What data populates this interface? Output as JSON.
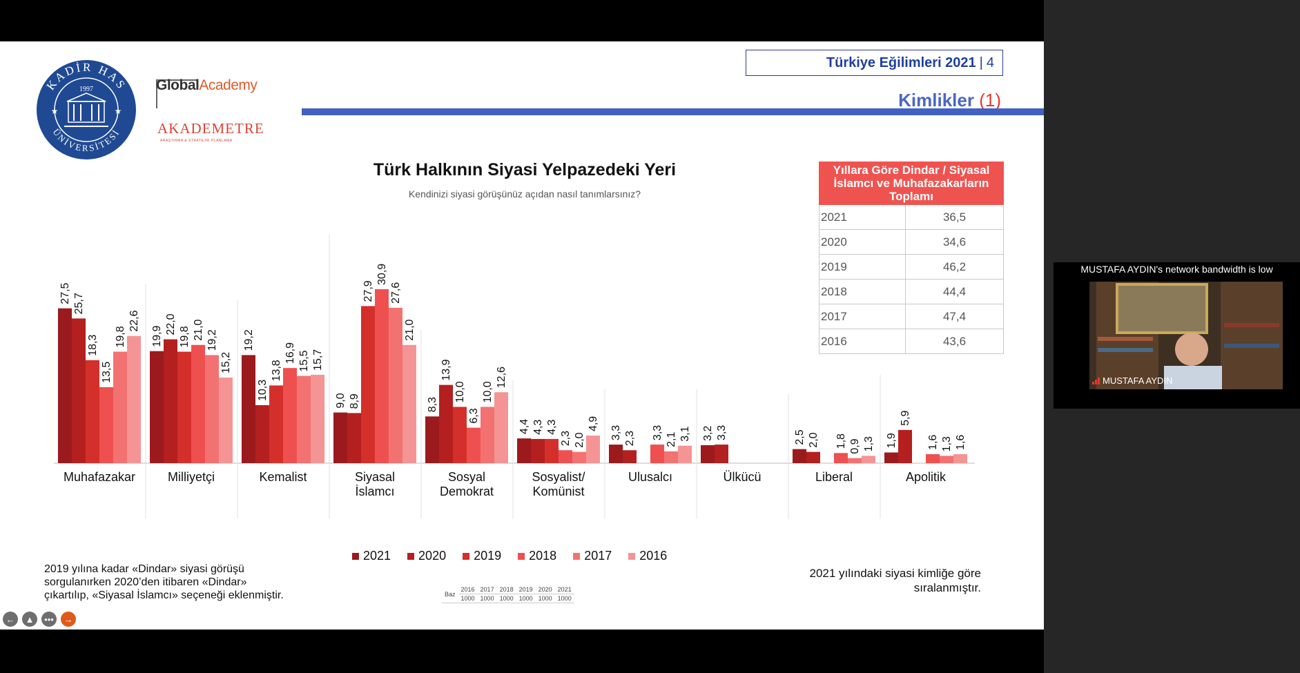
{
  "slide": {
    "header": {
      "title": "Türkiye Eğilimleri 2021",
      "separator": "|",
      "page": "4"
    },
    "section": {
      "title": "Kimlikler",
      "number": "(1)"
    },
    "logos": {
      "khas_top": "KADİR HAS",
      "khas_year": "1997",
      "khas_bottom": "ÜNİVERSİTESİ",
      "global_a": "Global",
      "global_b": "Academy",
      "akademetre": "AKADEMETRE",
      "akademetre_sub": "ARAŞTIRMA & STRATEJİK PLANLAMA"
    },
    "notes": {
      "left": "2019 yılına kadar «Dindar» siyasi görüşü sorgulanırken 2020’den itibaren «Dindar» çıkartılıp, «Siyasal İslamcı» seçeneği eklenmiştir.",
      "right": "2021 yılındaki siyasi kimliğe göre sıralanmıştır."
    },
    "side_table": {
      "header": "Yıllara Göre Dindar / Siyasal İslamcı ve Muhafazakarların Toplamı",
      "rows": [
        {
          "year": "2021",
          "value": "36,5"
        },
        {
          "year": "2020",
          "value": "34,6"
        },
        {
          "year": "2019",
          "value": "46,2"
        },
        {
          "year": "2018",
          "value": "44,4"
        },
        {
          "year": "2017",
          "value": "47,4"
        },
        {
          "year": "2016",
          "value": "43,6"
        }
      ]
    },
    "baz": {
      "label": "Baz",
      "years": [
        "2016",
        "2017",
        "2018",
        "2019",
        "2020",
        "2021"
      ],
      "counts": [
        "1000",
        "1000",
        "1000",
        "1000",
        "1000",
        "1000"
      ]
    }
  },
  "chart_data": {
    "type": "bar",
    "title": "Türk Halkının Siyasi Yelpazedeki Yeri",
    "subtitle": "Kendinizi siyasi görüşünüz açıdan nasıl tanımlarsınız?",
    "categories": [
      [
        "Muhafazakar"
      ],
      [
        "Milliyetçi"
      ],
      [
        "Kemalist"
      ],
      [
        "Siyasal",
        "İslamcı"
      ],
      [
        "Sosyal",
        "Demokrat"
      ],
      [
        "Sosyalist/",
        "Komünist"
      ],
      [
        "Ulusalcı"
      ],
      [
        "Ülkücü"
      ],
      [
        "Liberal"
      ],
      [
        "Apolitik"
      ]
    ],
    "series": [
      {
        "name": "2021",
        "color": "#9b1a1d",
        "values": [
          27.5,
          19.9,
          19.2,
          9.0,
          8.3,
          4.4,
          3.3,
          3.2,
          2.5,
          1.9
        ]
      },
      {
        "name": "2020",
        "color": "#b3201f",
        "values": [
          25.7,
          22.0,
          10.3,
          8.9,
          13.9,
          4.3,
          2.3,
          3.3,
          2.0,
          5.9
        ]
      },
      {
        "name": "2019",
        "color": "#d42f2a",
        "values": [
          18.3,
          19.8,
          13.8,
          27.9,
          10.0,
          4.3,
          null,
          null,
          null,
          null
        ]
      },
      {
        "name": "2018",
        "color": "#ee5050",
        "values": [
          13.5,
          21.0,
          16.9,
          30.9,
          6.3,
          2.3,
          3.3,
          null,
          1.8,
          1.6
        ]
      },
      {
        "name": "2017",
        "color": "#f27272",
        "values": [
          19.8,
          19.2,
          15.5,
          27.6,
          10.0,
          2.0,
          2.1,
          null,
          0.9,
          1.3
        ]
      },
      {
        "name": "2016",
        "color": "#f59494",
        "values": [
          22.6,
          15.2,
          15.7,
          21.0,
          12.6,
          4.9,
          3.1,
          null,
          1.3,
          1.6
        ]
      }
    ],
    "ylim": [
      0,
      32
    ],
    "decimal_separator": ",",
    "legend_position": "bottom"
  },
  "video": {
    "notice": "MUSTAFA AYDIN's network bandwidth is low",
    "name": "MUSTAFA AYDIN"
  },
  "controls": [
    "back-arrow-icon",
    "pen-icon",
    "more-icon",
    "forward-arrow-icon"
  ]
}
